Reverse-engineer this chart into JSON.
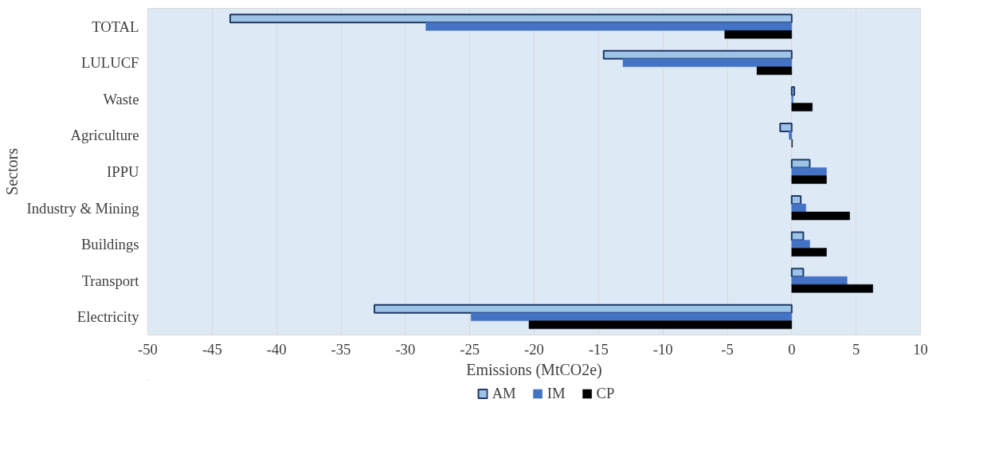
{
  "chart_data": {
    "type": "bar",
    "orientation": "horizontal",
    "xlabel": "Emissions (MtCO2e)",
    "ylabel": "Sectors",
    "categories": [
      "TOTAL",
      "LULUCF",
      "Waste",
      "Agriculture",
      "IPPU",
      "Industry & Mining",
      "Buildings",
      "Transport",
      "Electricity"
    ],
    "series": [
      {
        "name": "AM",
        "color": "#9dc3e6",
        "values": [
          -43.6,
          -14.6,
          0.2,
          -0.9,
          1.4,
          0.7,
          0.9,
          0.9,
          -32.4
        ]
      },
      {
        "name": "IM",
        "color": "#4472c4",
        "values": [
          -28.4,
          -13.1,
          0.1,
          -0.2,
          2.7,
          1.1,
          1.4,
          4.3,
          -24.9
        ]
      },
      {
        "name": "CP",
        "color": "#000000",
        "values": [
          -5.2,
          -2.7,
          1.6,
          0.05,
          2.7,
          4.5,
          2.7,
          6.3,
          -20.4
        ]
      }
    ],
    "xlim": [
      -50,
      10
    ],
    "xticks": [
      -50,
      -45,
      -40,
      -35,
      -30,
      -25,
      -20,
      -15,
      -10,
      -5,
      0,
      5,
      10
    ],
    "grid": "x",
    "legend": "bottom"
  }
}
